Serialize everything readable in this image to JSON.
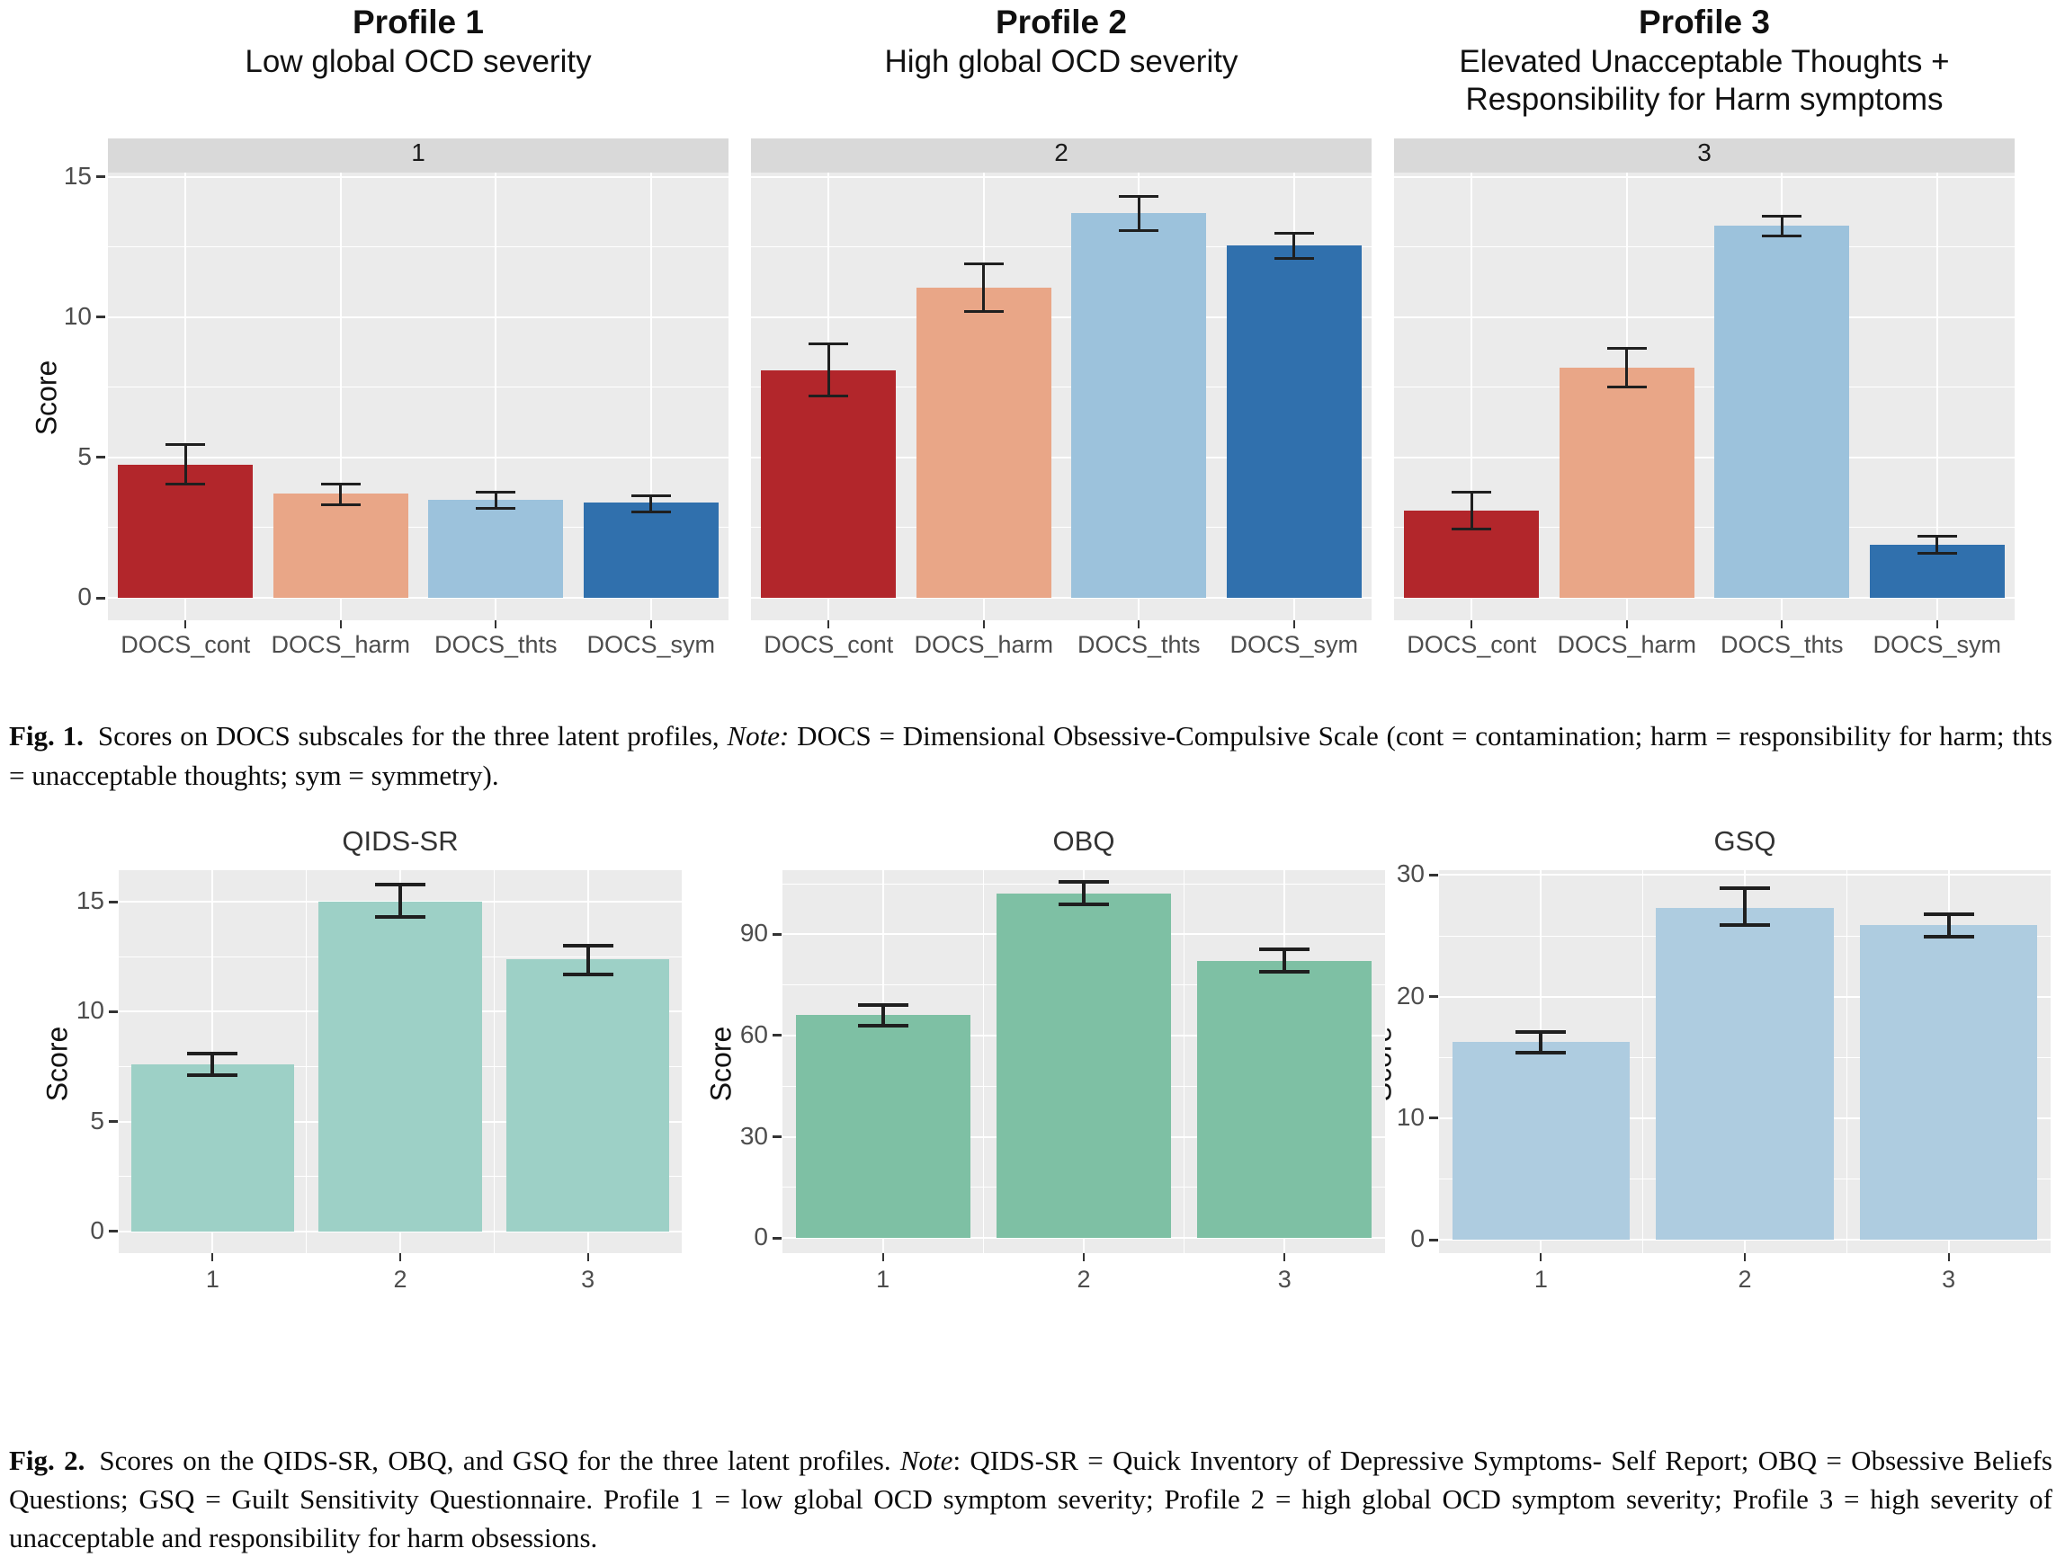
{
  "captions": {
    "fig1_label": "Fig. 1.",
    "fig1_before": "Scores on DOCS subscales for the three latent profiles, ",
    "fig1_note_label": "Note:",
    "fig1_after": " DOCS = Dimensional Obsessive-Compulsive Scale (cont = contamination; harm = responsibility for harm; thts = unacceptable thoughts; sym = symmetry).",
    "fig2_label": "Fig. 2.",
    "fig2_before": "Scores on the QIDS-SR, OBQ, and GSQ for the three latent profiles. ",
    "fig2_note_label": "Note",
    "fig2_after": ": QIDS-SR = Quick Inventory of Depressive Symptoms- Self Report; OBQ = Obsessive Beliefs Questions; GSQ = Guilt Sensitivity Questionnaire. Profile 1 = low global OCD symptom severity; Profile 2 = high global OCD symptom severity; Profile 3 = high severity of unacceptable and responsibility for harm obsessions."
  },
  "palette": {
    "panel_bg": "#ebebeb",
    "strip_bg": "#d9d9d9",
    "gridline": "#ffffff",
    "tick_text": "#4d4d4d",
    "error_bar": "#1f1f1f"
  },
  "chart_data": [
    {
      "id": "fig1-docs",
      "type": "bar",
      "ylabel": "Score",
      "yticks": [
        0,
        5,
        10,
        15
      ],
      "ylim": [
        -0.8,
        15.15
      ],
      "grid": true,
      "categories": [
        "DOCS_cont",
        "DOCS_harm",
        "DOCS_thts",
        "DOCS_sym"
      ],
      "bar_colors": [
        "#b2262b",
        "#e9a687",
        "#9cc2dc",
        "#3070ad"
      ],
      "panels": [
        {
          "strip": "1",
          "title_bold": "Profile 1",
          "title_sub": "Low global OCD severity",
          "values": [
            4.75,
            3.7,
            3.5,
            3.4
          ],
          "err_low": [
            4.05,
            3.3,
            3.2,
            3.05
          ],
          "err_high": [
            5.45,
            4.05,
            3.75,
            3.65
          ]
        },
        {
          "strip": "2",
          "title_bold": "Profile 2",
          "title_sub": "High global OCD severity",
          "values": [
            8.1,
            11.05,
            13.7,
            12.55
          ],
          "err_low": [
            7.2,
            10.2,
            13.1,
            12.1
          ],
          "err_high": [
            9.05,
            11.9,
            14.3,
            13.0
          ]
        },
        {
          "strip": "3",
          "title_bold": "Profile 3",
          "title_sub": "Elevated Unacceptable Thoughts +\nResponsibility for Harm symptoms",
          "values": [
            3.1,
            8.2,
            13.25,
            1.9
          ],
          "err_low": [
            2.45,
            7.5,
            12.9,
            1.6
          ],
          "err_high": [
            3.75,
            8.9,
            13.6,
            2.2
          ]
        }
      ]
    },
    {
      "id": "fig2-qids",
      "type": "bar",
      "title": "QIDS-SR",
      "ylabel": "Score",
      "yticks": [
        0,
        5,
        10,
        15
      ],
      "ylim": [
        -1.0,
        16.45
      ],
      "grid": true,
      "categories": [
        "1",
        "2",
        "3"
      ],
      "values": [
        7.6,
        15.0,
        12.4
      ],
      "err_low": [
        7.1,
        14.3,
        11.7
      ],
      "err_high": [
        8.1,
        15.8,
        13.0
      ],
      "bar_color": "#9dd0c6"
    },
    {
      "id": "fig2-obq",
      "type": "bar",
      "title": "OBQ",
      "ylabel": "Score",
      "yticks": [
        0,
        30,
        60,
        90
      ],
      "ylim": [
        -4.5,
        109.0
      ],
      "grid": true,
      "categories": [
        "1",
        "2",
        "3"
      ],
      "values": [
        66,
        102,
        82
      ],
      "err_low": [
        63,
        99,
        79
      ],
      "err_high": [
        69,
        105.5,
        85.5
      ],
      "bar_color": "#7ec0a4"
    },
    {
      "id": "fig2-gsq",
      "type": "bar",
      "title": "GSQ",
      "ylabel": "Score",
      "yticks": [
        0,
        10,
        20,
        30
      ],
      "ylim": [
        -1.1,
        30.4
      ],
      "grid": true,
      "categories": [
        "1",
        "2",
        "3"
      ],
      "values": [
        16.3,
        27.3,
        25.9
      ],
      "err_low": [
        15.4,
        25.9,
        24.9
      ],
      "err_high": [
        17.1,
        28.9,
        26.8
      ],
      "bar_color": "#aecce0"
    }
  ]
}
